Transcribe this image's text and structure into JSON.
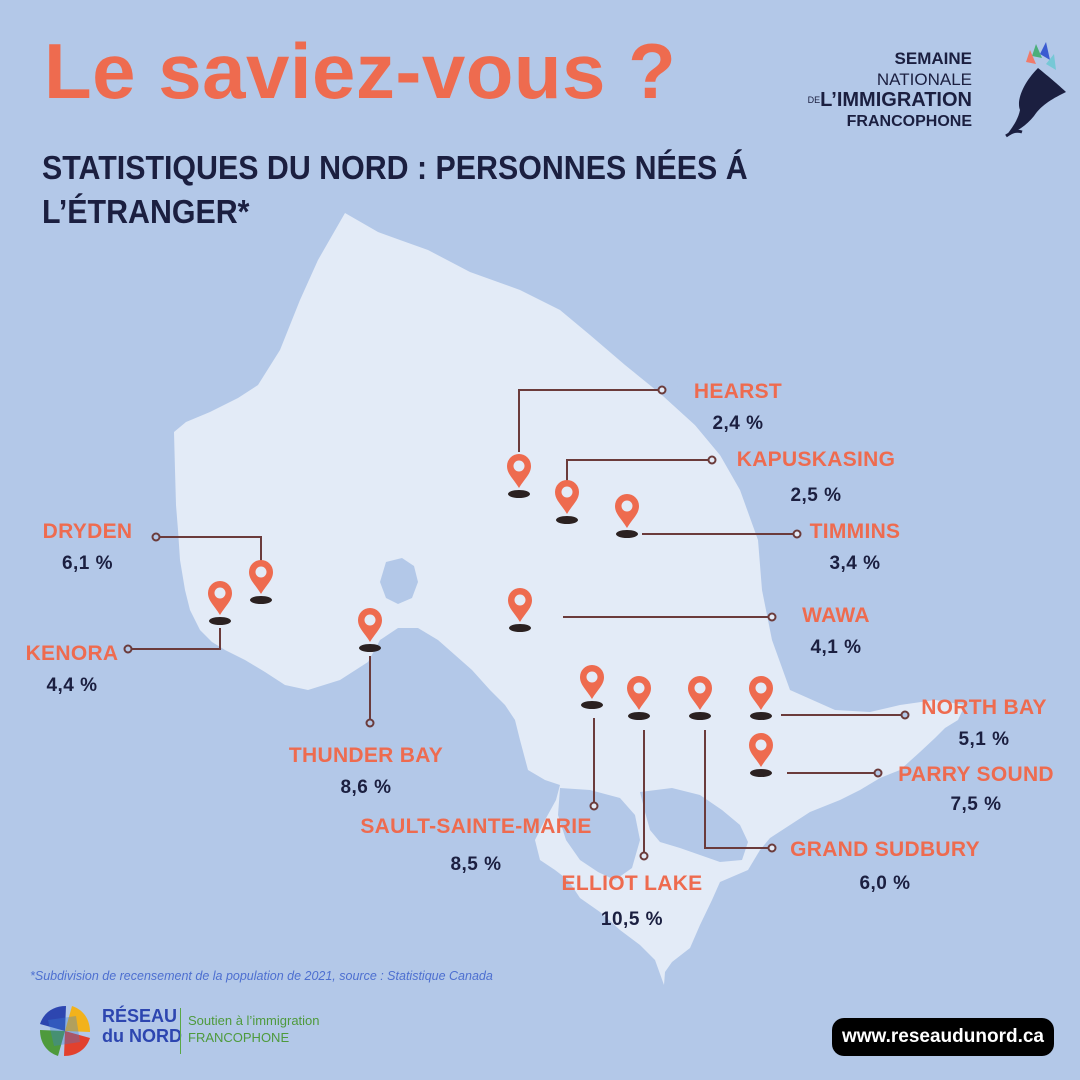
{
  "header": {
    "headline": "Le saviez-vous ?",
    "subtitle": "STATISTIQUES DU NORD : PERSONNES NÉES Á L’ÉTRANGER*"
  },
  "org_logo": {
    "line1_bold": "SEMAINE",
    "line1_rest": " NATIONALE",
    "line2_small": "DE",
    "line2": "L’IMMIGRATION",
    "line3": "FRANCOPHONE"
  },
  "cities": [
    {
      "name": "HEARST",
      "value": "2,4 %"
    },
    {
      "name": "KAPUSKASING",
      "value": "2,5 %"
    },
    {
      "name": "TIMMINS",
      "value": "3,4 %"
    },
    {
      "name": "DRYDEN",
      "value": "6,1 %"
    },
    {
      "name": "WAWA",
      "value": "4,1 %"
    },
    {
      "name": "KENORA",
      "value": "4,4 %"
    },
    {
      "name": "THUNDER BAY",
      "value": "8,6 %"
    },
    {
      "name": "NORTH BAY",
      "value": "5,1 %"
    },
    {
      "name": "PARRY SOUND",
      "value": "7,5 %"
    },
    {
      "name": "SAULT-SAINTE-MARIE",
      "value": "8,5 %"
    },
    {
      "name": "GRAND SUDBURY",
      "value": "6,0 %"
    },
    {
      "name": "ELLIOT LAKE",
      "value": "10,5 %"
    }
  ],
  "footnote": "*Subdivision de recensement de la population de 2021, source : Statistique Canada",
  "footer": {
    "reseau_line1": "RÉSEAU",
    "reseau_line2": "du NORD",
    "tagline_line1": "Soutien à l’immigration",
    "tagline_line2": "FRANCOPHONE",
    "url": "www.reseaudunord.ca"
  },
  "colors": {
    "background": "#b3c8e8",
    "land": "#e3ebf7",
    "accent": "#ee6b4f",
    "navy": "#1b1f40",
    "connector": "#6b3b3b"
  },
  "icons": [
    "map-pin-icon"
  ]
}
